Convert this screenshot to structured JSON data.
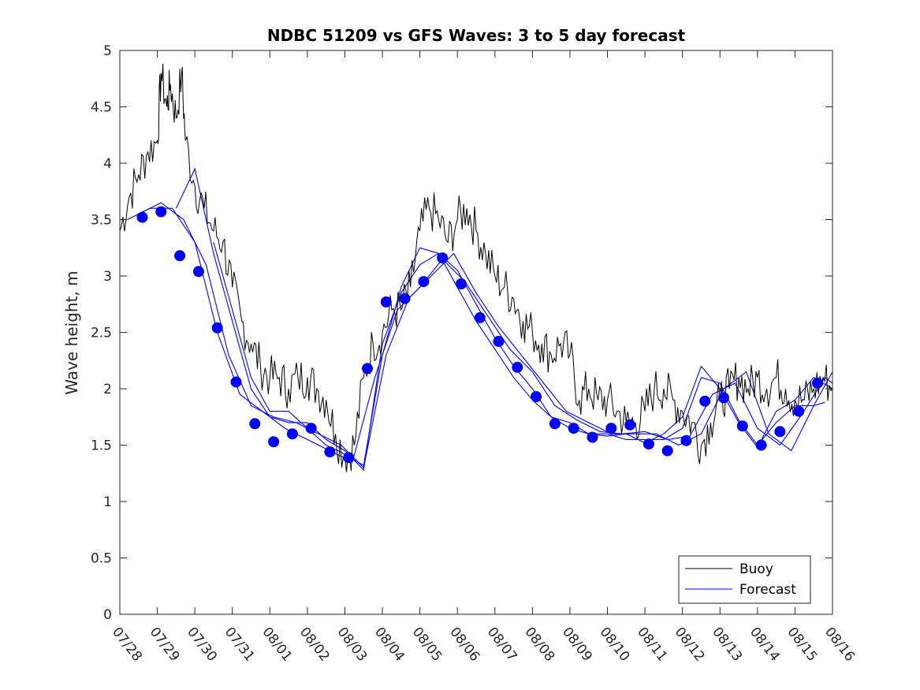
{
  "chart_data": {
    "type": "line",
    "title": "NDBC 51209 vs GFS Waves: 3 to 5 day forecast",
    "xlabel": "",
    "ylabel": "Wave height, m",
    "x_tick_labels": [
      "07/28",
      "07/29",
      "07/30",
      "07/31",
      "08/01",
      "08/02",
      "08/03",
      "08/04",
      "08/05",
      "08/06",
      "08/07",
      "08/08",
      "08/09",
      "08/10",
      "08/11",
      "08/12",
      "08/13",
      "08/14",
      "08/15",
      "08/16"
    ],
    "xlim_days": [
      0,
      19
    ],
    "ylim": [
      0,
      5
    ],
    "y_ticks": [
      0,
      0.5,
      1,
      1.5,
      2,
      2.5,
      3,
      3.5,
      4,
      4.5,
      5
    ],
    "grid": false,
    "legend_position": "bottom-right",
    "colors": {
      "buoy": "#000000",
      "forecast": "#0000ff",
      "axes": "#262626"
    },
    "buoy": {
      "name": "Buoy",
      "days": [
        0,
        0.25,
        0.5,
        0.75,
        1,
        1.1,
        1.25,
        1.35,
        1.5,
        1.65,
        1.75,
        2,
        2.25,
        2.5,
        2.75,
        3,
        3.25,
        3.5,
        3.75,
        4,
        4.25,
        4.5,
        4.75,
        5,
        5.25,
        5.5,
        5.75,
        6,
        6.25,
        6.5,
        6.75,
        7,
        7.25,
        7.5,
        7.75,
        8,
        8.25,
        8.5,
        8.75,
        9,
        9.25,
        9.5,
        9.75,
        10,
        10.25,
        10.5,
        10.75,
        11,
        11.25,
        11.5,
        11.75,
        12,
        12.25,
        12.5,
        12.75,
        13,
        13.25,
        13.5,
        13.75,
        14,
        14.25,
        14.5,
        14.75,
        15,
        15.25,
        15.5,
        15.75,
        16,
        16.25,
        16.5,
        16.75,
        17,
        17.25,
        17.5,
        17.75,
        18,
        18.25,
        18.5,
        18.75,
        19
      ],
      "values": [
        3.4,
        3.7,
        3.9,
        4.1,
        4.2,
        4.8,
        4.5,
        4.7,
        4.4,
        4.8,
        4.2,
        3.8,
        3.6,
        3.4,
        3.3,
        2.9,
        2.6,
        2.4,
        2.2,
        2.1,
        2.1,
        2.0,
        2.1,
        2.1,
        2.0,
        1.9,
        1.6,
        1.4,
        1.5,
        2.1,
        2.4,
        2.5,
        2.7,
        2.7,
        2.9,
        3.4,
        3.6,
        3.5,
        3.3,
        3.5,
        3.6,
        3.4,
        3.2,
        3.0,
        2.9,
        2.8,
        2.6,
        2.5,
        2.4,
        2.3,
        2.4,
        2.3,
        1.9,
        2.0,
        1.9,
        1.9,
        1.8,
        1.7,
        1.7,
        1.8,
        2.0,
        2.0,
        1.9,
        1.8,
        1.7,
        1.5,
        1.7,
        1.9,
        2.0,
        2.1,
        2.0,
        2.1,
        2.0,
        2.1,
        2.0,
        1.9,
        1.9,
        2.0,
        2.1,
        2.0
      ]
    },
    "forecast": {
      "name": "Forecast",
      "days": [
        0.6,
        1.1,
        1.6,
        2.1,
        2.6,
        3.1,
        3.6,
        4.1,
        4.6,
        5.1,
        5.6,
        6.1,
        6.6,
        7.1,
        7.6,
        8.1,
        8.6,
        9.1,
        9.6,
        10.1,
        10.6,
        11.1,
        11.6,
        12.1,
        12.6,
        13.1,
        13.6,
        14.1,
        14.6,
        15.1,
        15.6,
        16.1,
        16.6,
        17.1,
        17.6,
        18.1,
        18.6
      ],
      "values": [
        3.52,
        3.57,
        3.18,
        3.04,
        2.54,
        2.06,
        1.69,
        1.53,
        1.6,
        1.65,
        1.44,
        1.39,
        2.18,
        2.77,
        2.8,
        2.95,
        3.16,
        2.93,
        2.63,
        2.42,
        2.19,
        1.93,
        1.69,
        1.65,
        1.57,
        1.65,
        1.68,
        1.51,
        1.45,
        1.54,
        1.89,
        1.92,
        1.67,
        1.5,
        1.62,
        1.8,
        2.05
      ]
    },
    "forecast_runs": [
      {
        "days": [
          0.2,
          0.8,
          1.4,
          2.0,
          2.6,
          3.2,
          3.8,
          4.4,
          5.0,
          5.6,
          6.2,
          6.8,
          7.4,
          8.0,
          8.6,
          9.2,
          9.8,
          10.4,
          11.0,
          11.6,
          12.2,
          12.8,
          13.4,
          14.0,
          14.6,
          15.2,
          15.8,
          16.4,
          17.0,
          17.6,
          18.2,
          18.8,
          19.0
        ],
        "values": [
          3.5,
          3.6,
          3.6,
          3.3,
          2.5,
          1.95,
          1.8,
          1.65,
          1.55,
          1.45,
          1.35,
          2.1,
          2.7,
          2.9,
          3.15,
          2.95,
          2.65,
          2.35,
          2.15,
          1.85,
          1.72,
          1.62,
          1.6,
          1.62,
          1.55,
          1.58,
          1.95,
          2.05,
          1.65,
          1.5,
          1.78,
          2.1,
          2.05
        ]
      },
      {
        "days": [
          0.5,
          1.1,
          1.7,
          2.3,
          2.9,
          3.5,
          4.1,
          4.7,
          5.3,
          5.9,
          6.5,
          7.1,
          7.7,
          8.3,
          8.9,
          9.5,
          10.1,
          10.7,
          11.3,
          11.9,
          12.5,
          13.1,
          13.7,
          14.3,
          14.9,
          15.5,
          16.1,
          16.7,
          17.3,
          17.9,
          18.5,
          19.0
        ],
        "values": [
          3.55,
          3.65,
          3.5,
          3.1,
          2.3,
          1.85,
          1.75,
          1.7,
          1.6,
          1.5,
          1.3,
          2.3,
          2.8,
          3.0,
          3.2,
          2.85,
          2.55,
          2.3,
          2.05,
          1.8,
          1.7,
          1.6,
          1.6,
          1.6,
          1.5,
          1.6,
          2.0,
          2.15,
          1.6,
          1.45,
          1.85,
          2.15
        ]
      },
      {
        "days": [
          1.5,
          2.0,
          2.5,
          3.0,
          3.5,
          4.0,
          4.5,
          5.0,
          5.5,
          6.0,
          6.5,
          7.0,
          7.5,
          8.0,
          8.5,
          9.0,
          9.5,
          10.0,
          10.5,
          11.0,
          11.5,
          12.0,
          12.5,
          13.0,
          13.5,
          14.0,
          14.5,
          15.0,
          15.5,
          16.0,
          16.5,
          17.0,
          17.5,
          18.0,
          18.5,
          19.0
        ],
        "values": [
          3.6,
          3.95,
          3.2,
          2.6,
          2.0,
          1.75,
          1.7,
          1.7,
          1.55,
          1.45,
          1.28,
          2.4,
          2.85,
          3.1,
          3.2,
          3.05,
          2.75,
          2.45,
          2.2,
          2.0,
          1.75,
          1.65,
          1.6,
          1.58,
          1.6,
          1.52,
          1.6,
          1.75,
          2.2,
          2.0,
          1.7,
          1.48,
          1.8,
          1.9,
          2.1,
          2.0
        ]
      },
      {
        "days": [
          2.5,
          3.0,
          3.5,
          4.0,
          4.5,
          5.0,
          5.5,
          6.0,
          6.5,
          7.0,
          7.5,
          8.0,
          8.5,
          9.0,
          9.5,
          10.0,
          10.5,
          11.0,
          11.5,
          12.0,
          12.5,
          13.0,
          13.5,
          14.0,
          14.5,
          15.0,
          15.5,
          16.0,
          16.5,
          17.0,
          17.5,
          18.0,
          18.5,
          18.8
        ],
        "values": [
          3.3,
          2.7,
          2.1,
          1.8,
          1.8,
          1.65,
          1.5,
          1.42,
          1.32,
          2.3,
          2.9,
          3.25,
          3.2,
          2.9,
          2.6,
          2.35,
          2.1,
          1.9,
          1.75,
          1.7,
          1.6,
          1.6,
          1.55,
          1.55,
          1.55,
          1.65,
          2.1,
          2.05,
          1.72,
          1.5,
          1.7,
          1.85,
          1.85,
          1.88
        ]
      }
    ],
    "legend": [
      "Buoy",
      "Forecast"
    ]
  }
}
